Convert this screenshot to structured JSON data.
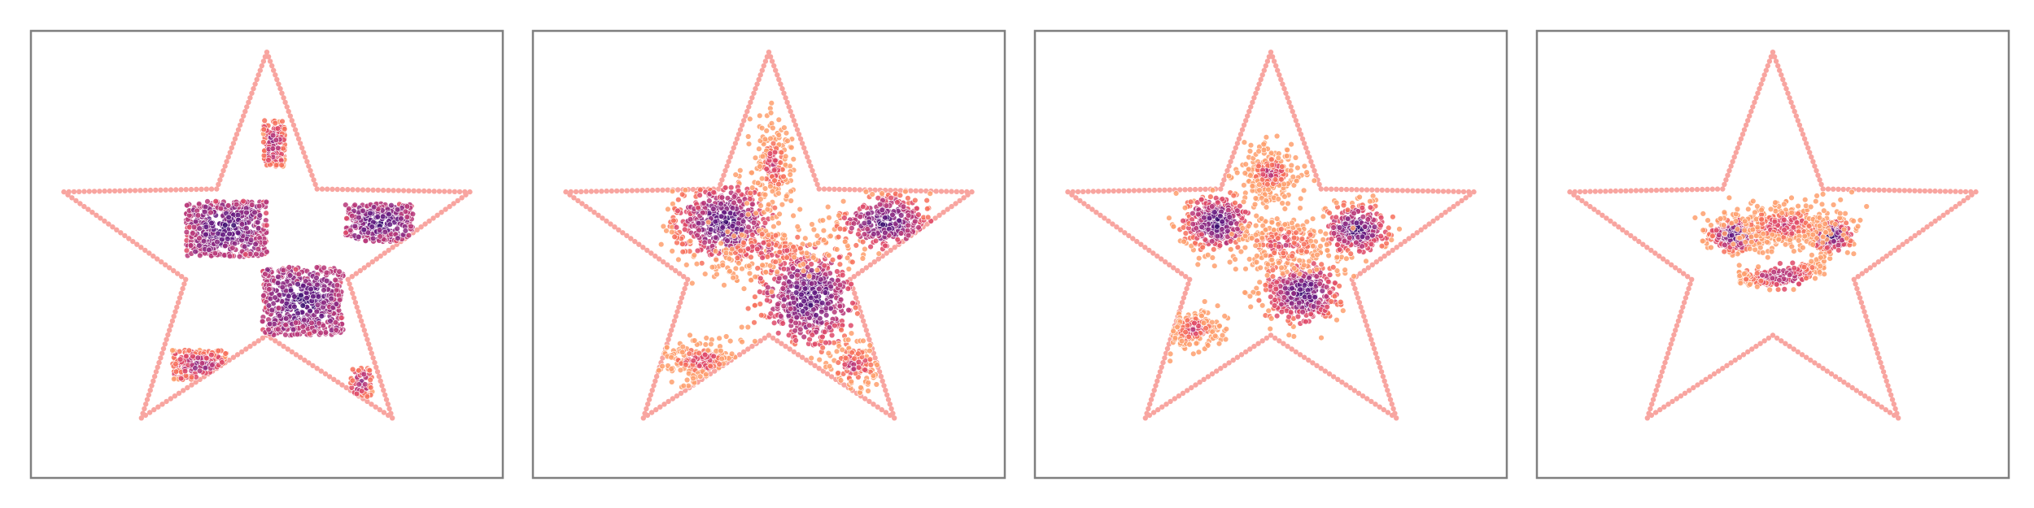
{
  "figure": {
    "title": "",
    "panel_count": 4
  },
  "colors": {
    "background": "#ffffff",
    "frame": "#7f7f7f",
    "star_outline": "#f8a5a0",
    "colormap_magma_subset": [
      "#3b0f70",
      "#641a80",
      "#8c2981",
      "#b73779",
      "#de4968",
      "#f7705c",
      "#fe9f6d"
    ]
  },
  "chart_data": [
    {
      "type": "scatter",
      "title": "",
      "xlabel": "",
      "ylabel": "",
      "xlim": [
        -1.05,
        1.05
      ],
      "ylim": [
        -1.05,
        1.05
      ],
      "grid": false,
      "ticks": "none",
      "star_outline": {
        "outer_radius": 0.95,
        "inner_radius": 0.38,
        "points": 5,
        "marker_count": 300
      },
      "series": [
        {
          "shape": "square",
          "cx": -0.18,
          "cy": 0.12,
          "size": [
            0.36,
            0.26
          ],
          "n": 520,
          "density": "high"
        },
        {
          "shape": "square",
          "cx": 0.16,
          "cy": -0.22,
          "size": [
            0.36,
            0.32
          ],
          "n": 600,
          "density": "high"
        },
        {
          "shape": "square",
          "cx": 0.5,
          "cy": 0.15,
          "size": [
            0.3,
            0.18
          ],
          "n": 320,
          "density": "high"
        },
        {
          "shape": "square",
          "cx": 0.03,
          "cy": 0.52,
          "size": [
            0.1,
            0.22
          ],
          "n": 160,
          "density": "mid"
        },
        {
          "shape": "square",
          "cx": -0.3,
          "cy": -0.52,
          "size": [
            0.24,
            0.14
          ],
          "n": 180,
          "density": "mid"
        },
        {
          "shape": "square",
          "cx": 0.42,
          "cy": -0.6,
          "size": [
            0.1,
            0.14
          ],
          "n": 60,
          "density": "mid"
        }
      ]
    },
    {
      "type": "scatter",
      "title": "",
      "xlabel": "",
      "ylabel": "",
      "xlim": [
        -1.05,
        1.05
      ],
      "ylim": [
        -1.05,
        1.05
      ],
      "grid": false,
      "ticks": "none",
      "star_outline": {
        "outer_radius": 0.95,
        "inner_radius": 0.38,
        "points": 5,
        "marker_count": 300
      },
      "series": [
        {
          "shape": "blob",
          "cx": -0.2,
          "cy": 0.15,
          "size": [
            0.24,
            0.2
          ],
          "n": 520,
          "density": "high"
        },
        {
          "shape": "blob",
          "cx": 0.18,
          "cy": -0.2,
          "size": [
            0.26,
            0.26
          ],
          "n": 560,
          "density": "high"
        },
        {
          "shape": "blob",
          "cx": 0.52,
          "cy": 0.15,
          "size": [
            0.22,
            0.14
          ],
          "n": 300,
          "density": "high"
        },
        {
          "shape": "blob",
          "cx": 0.02,
          "cy": 0.42,
          "size": [
            0.1,
            0.22
          ],
          "n": 200,
          "density": "low"
        },
        {
          "shape": "blob",
          "cx": -0.3,
          "cy": -0.5,
          "size": [
            0.2,
            0.12
          ],
          "n": 180,
          "density": "low"
        },
        {
          "shape": "blob",
          "cx": 0.38,
          "cy": -0.52,
          "size": [
            0.16,
            0.14
          ],
          "n": 110,
          "density": "low"
        },
        {
          "shape": "blob",
          "cx": -0.02,
          "cy": 0.02,
          "size": [
            0.3,
            0.14
          ],
          "n": 160,
          "density": "low"
        }
      ]
    },
    {
      "type": "scatter",
      "title": "",
      "xlabel": "",
      "ylabel": "",
      "xlim": [
        -1.05,
        1.05
      ],
      "ylim": [
        -1.05,
        1.05
      ],
      "grid": false,
      "ticks": "none",
      "star_outline": {
        "outer_radius": 0.95,
        "inner_radius": 0.38,
        "points": 5,
        "marker_count": 300
      },
      "series": [
        {
          "shape": "blob",
          "cx": -0.24,
          "cy": 0.15,
          "size": [
            0.16,
            0.14
          ],
          "n": 380,
          "density": "high"
        },
        {
          "shape": "blob",
          "cx": 0.14,
          "cy": -0.18,
          "size": [
            0.18,
            0.16
          ],
          "n": 420,
          "density": "high"
        },
        {
          "shape": "blob",
          "cx": 0.38,
          "cy": 0.12,
          "size": [
            0.16,
            0.12
          ],
          "n": 300,
          "density": "high"
        },
        {
          "shape": "blob",
          "cx": 0.0,
          "cy": 0.38,
          "size": [
            0.14,
            0.14
          ],
          "n": 260,
          "density": "low"
        },
        {
          "shape": "blob",
          "cx": -0.34,
          "cy": -0.35,
          "size": [
            0.16,
            0.1
          ],
          "n": 200,
          "density": "low"
        },
        {
          "shape": "blob",
          "cx": 0.06,
          "cy": 0.05,
          "size": [
            0.24,
            0.14
          ],
          "n": 240,
          "density": "low"
        }
      ]
    },
    {
      "type": "scatter",
      "title": "",
      "xlabel": "",
      "ylabel": "",
      "xlim": [
        -1.05,
        1.05
      ],
      "ylim": [
        -1.05,
        1.05
      ],
      "grid": false,
      "ticks": "none",
      "star_outline": {
        "outer_radius": 0.95,
        "inner_radius": 0.38,
        "points": 5,
        "marker_count": 300
      },
      "series": [
        {
          "shape": "blob",
          "cx": -0.17,
          "cy": 0.09,
          "size": [
            0.12,
            0.08
          ],
          "n": 300,
          "density": "high"
        },
        {
          "shape": "blob",
          "cx": 0.26,
          "cy": 0.09,
          "size": [
            0.1,
            0.08
          ],
          "n": 260,
          "density": "high"
        },
        {
          "shape": "blob",
          "cx": 0.05,
          "cy": 0.14,
          "size": [
            0.28,
            0.12
          ],
          "n": 340,
          "density": "low"
        },
        {
          "shape": "arc",
          "cx": 0.04,
          "cy": -0.1,
          "size": [
            0.24,
            0.12
          ],
          "n": 260,
          "density": "mid"
        }
      ]
    }
  ]
}
